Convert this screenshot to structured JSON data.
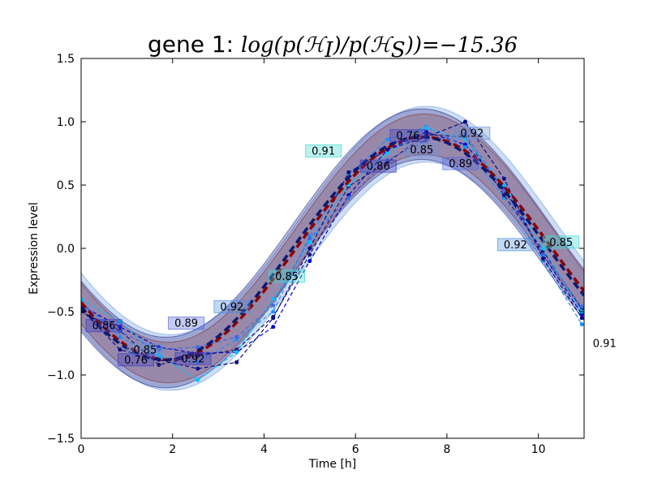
{
  "chart_data": {
    "type": "line",
    "title_prefix": "gene 1: ",
    "title_math": "log(p(ℋ",
    "title_math_sub1": "I",
    "title_math_mid": ")/p(ℋ",
    "title_math_sub2": "S",
    "title_math_end": "))=−15.36",
    "xlabel": "Time [h]",
    "ylabel": "Expression level",
    "xlim": [
      0,
      11
    ],
    "ylim": [
      -1.5,
      1.5
    ],
    "xticks": [
      0,
      2,
      4,
      6,
      8,
      10
    ],
    "xtick_labels": [
      "0",
      "2",
      "4",
      "6",
      "8",
      "10"
    ],
    "yticks": [
      -1.5,
      -1.0,
      -0.5,
      0.0,
      0.5,
      1.0,
      1.5
    ],
    "ytick_labels": [
      "−1.5",
      "−1.0",
      "−0.5",
      "0.0",
      "0.5",
      "1.0",
      "1.5"
    ],
    "grid": false,
    "bands": [
      {
        "name": "band-blue-light",
        "center_shift": 0.05,
        "amp": 0.92,
        "half_width": 0.22,
        "color": "#6f9fdf",
        "opacity": 0.35
      },
      {
        "name": "band-navy",
        "center_shift": -0.05,
        "amp": 0.92,
        "half_width": 0.2,
        "color": "#2b2b8a",
        "opacity": 0.3
      },
      {
        "name": "band-brown",
        "center_shift": 0.0,
        "amp": 0.92,
        "half_width": 0.16,
        "color": "#8b2f2f",
        "opacity": 0.25
      }
    ],
    "mean_curves": [
      {
        "name": "mean-red",
        "shift": 0.0,
        "color": "#8b0000"
      },
      {
        "name": "mean-navy",
        "shift": -0.08,
        "color": "#0d1a6e"
      }
    ],
    "series": [
      {
        "color": "#0000cc",
        "y": [
          -0.45,
          -0.62,
          -0.78,
          -0.83,
          -0.82,
          -0.62,
          -0.1,
          0.42,
          0.78,
          0.92,
          0.82,
          0.48,
          -0.05,
          -0.52
        ]
      },
      {
        "color": "#1e90ff",
        "y": [
          -0.42,
          -0.7,
          -0.86,
          -0.9,
          -0.72,
          -0.5,
          0.1,
          0.58,
          0.86,
          0.96,
          0.8,
          0.4,
          -0.1,
          -0.6
        ]
      },
      {
        "color": "#191970",
        "y": [
          -0.5,
          -0.65,
          -0.92,
          -0.85,
          -0.8,
          -0.54,
          -0.05,
          0.49,
          0.68,
          0.9,
          0.88,
          0.42,
          -0.02,
          -0.48
        ]
      },
      {
        "color": "#00bfff",
        "y": [
          -0.4,
          -0.58,
          -0.84,
          -1.04,
          -0.82,
          -0.4,
          0.05,
          0.5,
          0.75,
          0.95,
          0.86,
          0.5,
          0.0,
          -0.5
        ]
      },
      {
        "color": "#0a0a80",
        "y": [
          -0.48,
          -0.8,
          -0.88,
          -0.95,
          -0.9,
          -0.55,
          0.0,
          0.6,
          0.78,
          0.88,
          1.0,
          0.55,
          -0.08,
          -0.55
        ]
      },
      {
        "color": "#4169e1",
        "y": [
          -0.44,
          -0.66,
          -0.8,
          -0.78,
          -0.7,
          -0.45,
          0.08,
          0.4,
          0.7,
          0.85,
          0.9,
          0.46,
          -0.05,
          -0.46
        ]
      }
    ],
    "series_x": [
      0,
      0.85,
      1.7,
      2.55,
      3.4,
      4.2,
      5.0,
      5.85,
      6.7,
      7.55,
      8.4,
      9.25,
      10.1,
      10.95
    ],
    "annotations": [
      {
        "text": "0.86",
        "x": 0.25,
        "y": -0.62,
        "bg": "#3b3bbf"
      },
      {
        "text": "0.85",
        "x": 1.15,
        "y": -0.81,
        "bg": "#6a8fd8"
      },
      {
        "text": "0.76",
        "x": 0.95,
        "y": -0.89,
        "bg": "#3b3bbf"
      },
      {
        "text": "0.89",
        "x": 2.05,
        "y": -0.6,
        "bg": "#5a6adf"
      },
      {
        "text": "0.92",
        "x": 2.2,
        "y": -0.88,
        "bg": "#3b3bbf"
      },
      {
        "text": "0.92",
        "x": 3.05,
        "y": -0.47,
        "bg": "#4a8fdf"
      },
      {
        "text": "0.85",
        "x": 4.25,
        "y": -0.23,
        "bg": "#40d8cf"
      },
      {
        "text": "0.91",
        "x": 5.05,
        "y": 0.76,
        "bg": "#40d8cf"
      },
      {
        "text": "0.86",
        "x": 6.25,
        "y": 0.64,
        "bg": "#3b3bbf"
      },
      {
        "text": "0.76",
        "x": 6.9,
        "y": 0.88,
        "bg": "#3b3bbf"
      },
      {
        "text": "0.85",
        "x": 7.2,
        "y": 0.77,
        "bg": "#6a8fd8"
      },
      {
        "text": "0.89",
        "x": 8.05,
        "y": 0.66,
        "bg": "#5a6adf"
      },
      {
        "text": "0.92",
        "x": 8.3,
        "y": 0.9,
        "bg": "#6a8fd8"
      },
      {
        "text": "0.92",
        "x": 9.25,
        "y": 0.02,
        "bg": "#4a8fdf"
      },
      {
        "text": "0.85",
        "x": 10.25,
        "y": 0.04,
        "bg": "#40d8cf"
      },
      {
        "text": "0.91",
        "x": 11.2,
        "y": -0.76,
        "bg": "none"
      }
    ]
  }
}
